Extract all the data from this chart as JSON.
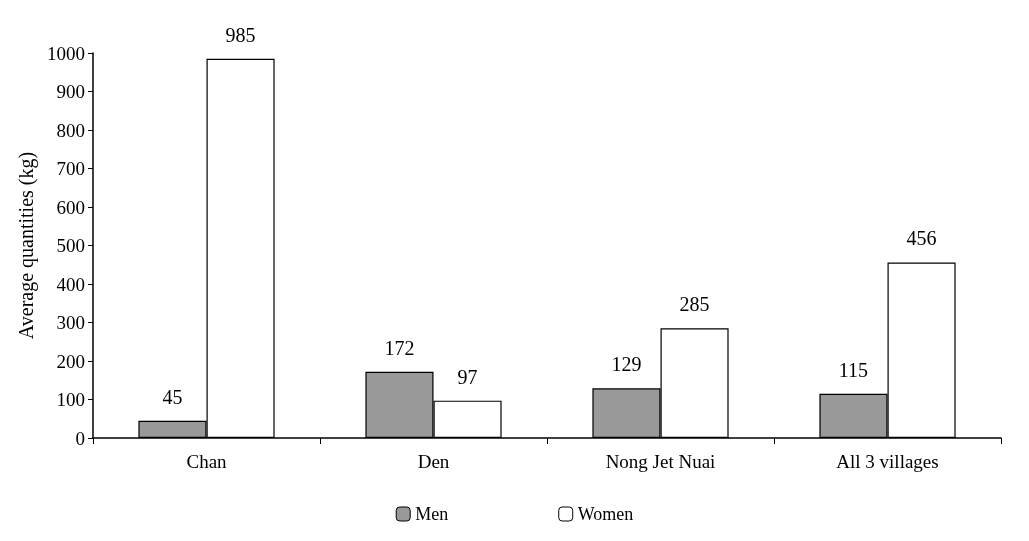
{
  "chart_data": {
    "type": "bar",
    "ylabel": "Average quantities (kg)",
    "categories": [
      "Chan",
      "Den",
      "Nong Jet Nuai",
      "All 3 villages"
    ],
    "series": [
      {
        "name": "Men",
        "color": "#999999",
        "values": [
          45,
          172,
          129,
          115
        ]
      },
      {
        "name": "Women",
        "color": "#ffffff",
        "values": [
          985,
          97,
          285,
          456
        ]
      }
    ],
    "ylim": [
      0,
      1000
    ],
    "yticks": [
      0,
      100,
      200,
      300,
      400,
      500,
      600,
      700,
      800,
      900,
      1000
    ],
    "grid": false,
    "legend": "bottom",
    "data_labels": true
  }
}
